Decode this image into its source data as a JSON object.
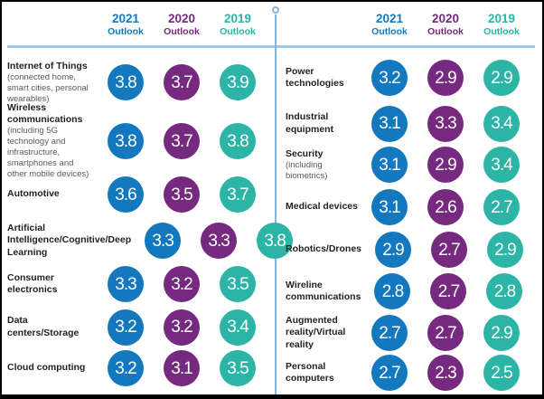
{
  "header": {
    "y2021": "2021",
    "y2020": "2020",
    "y2019": "2019",
    "outlook": "Outlook"
  },
  "colors": {
    "blue_2021": "#1478bf",
    "purple_2020": "#75297f",
    "teal_2019": "#2cb4a6",
    "rule": "#a0c7e6",
    "divider": "#88b5d9",
    "label_text": "#231f20",
    "sublabel_text": "#5a5a5c"
  },
  "panels": [
    {
      "side": "left",
      "rows": [
        {
          "label": "Internet of Things",
          "sub": "(connected home, smart cities, personal wearables)",
          "v2021": "3.8",
          "v2020": "3.7",
          "v2019": "3.9"
        },
        {
          "label": "Wireless communications",
          "sub": "(including 5G technology and infrastructure, smartphones and other mobile devices)",
          "v2021": "3.8",
          "v2020": "3.7",
          "v2019": "3.8"
        },
        {
          "label": "Automotive",
          "sub": "",
          "v2021": "3.6",
          "v2020": "3.5",
          "v2019": "3.7"
        },
        {
          "label": "Artificial Intelligence/Cognitive/Deep Learning",
          "sub": "",
          "v2021": "3.3",
          "v2020": "3.3",
          "v2019": "3.8"
        },
        {
          "label": "Consumer electronics",
          "sub": "",
          "v2021": "3.3",
          "v2020": "3.2",
          "v2019": "3.5"
        },
        {
          "label": "Data centers/Storage",
          "sub": "",
          "v2021": "3.2",
          "v2020": "3.2",
          "v2019": "3.4"
        },
        {
          "label": "Cloud computing",
          "sub": "",
          "v2021": "3.2",
          "v2020": "3.1",
          "v2019": "3.5"
        }
      ]
    },
    {
      "side": "right",
      "rows": [
        {
          "label": "Power technologies",
          "sub": "",
          "v2021": "3.2",
          "v2020": "2.9",
          "v2019": "2.9"
        },
        {
          "label": "Industrial equipment",
          "sub": "",
          "v2021": "3.1",
          "v2020": "3.3",
          "v2019": "3.4"
        },
        {
          "label": "Security",
          "sub": "(including biometrics)",
          "v2021": "3.1",
          "v2020": "2.9",
          "v2019": "3.4"
        },
        {
          "label": "Medical devices",
          "sub": "",
          "v2021": "3.1",
          "v2020": "2.6",
          "v2019": "2.7"
        },
        {
          "label": "Robotics/Drones",
          "sub": "",
          "v2021": "2.9",
          "v2020": "2.7",
          "v2019": "2.9"
        },
        {
          "label": "Wireline communications",
          "sub": "",
          "v2021": "2.8",
          "v2020": "2.7",
          "v2019": "2.8"
        },
        {
          "label": "Augmented reality/Virtual reality",
          "sub": "",
          "v2021": "2.7",
          "v2020": "2.7",
          "v2019": "2.9"
        },
        {
          "label": "Personal computers",
          "sub": "",
          "v2021": "2.7",
          "v2020": "2.3",
          "v2019": "2.5"
        }
      ]
    }
  ],
  "chart_data": {
    "type": "table",
    "columns": [
      "2021 Outlook",
      "2020 Outlook",
      "2019 Outlook"
    ],
    "column_colors": [
      "#1478bf",
      "#75297f",
      "#2cb4a6"
    ],
    "rows": [
      {
        "category": "Internet of Things",
        "note": "(connected home, smart cities, personal wearables)",
        "values": [
          3.8,
          3.7,
          3.9
        ]
      },
      {
        "category": "Wireless communications",
        "note": "(including 5G technology and infrastructure, smartphones and other mobile devices)",
        "values": [
          3.8,
          3.7,
          3.8
        ]
      },
      {
        "category": "Automotive",
        "note": "",
        "values": [
          3.6,
          3.5,
          3.7
        ]
      },
      {
        "category": "Artificial Intelligence/Cognitive/Deep Learning",
        "note": "",
        "values": [
          3.3,
          3.3,
          3.8
        ]
      },
      {
        "category": "Consumer electronics",
        "note": "",
        "values": [
          3.3,
          3.2,
          3.5
        ]
      },
      {
        "category": "Data centers/Storage",
        "note": "",
        "values": [
          3.2,
          3.2,
          3.4
        ]
      },
      {
        "category": "Cloud computing",
        "note": "",
        "values": [
          3.2,
          3.1,
          3.5
        ]
      },
      {
        "category": "Power technologies",
        "note": "",
        "values": [
          3.2,
          2.9,
          2.9
        ]
      },
      {
        "category": "Industrial equipment",
        "note": "",
        "values": [
          3.1,
          3.3,
          3.4
        ]
      },
      {
        "category": "Security",
        "note": "(including biometrics)",
        "values": [
          3.1,
          2.9,
          3.4
        ]
      },
      {
        "category": "Medical devices",
        "note": "",
        "values": [
          3.1,
          2.6,
          2.7
        ]
      },
      {
        "category": "Robotics/Drones",
        "note": "",
        "values": [
          2.9,
          2.7,
          2.9
        ]
      },
      {
        "category": "Wireline communications",
        "note": "",
        "values": [
          2.8,
          2.7,
          2.8
        ]
      },
      {
        "category": "Augmented reality/Virtual reality",
        "note": "",
        "values": [
          2.7,
          2.7,
          2.9
        ]
      },
      {
        "category": "Personal computers",
        "note": "",
        "values": [
          2.7,
          2.3,
          2.5
        ]
      }
    ]
  }
}
